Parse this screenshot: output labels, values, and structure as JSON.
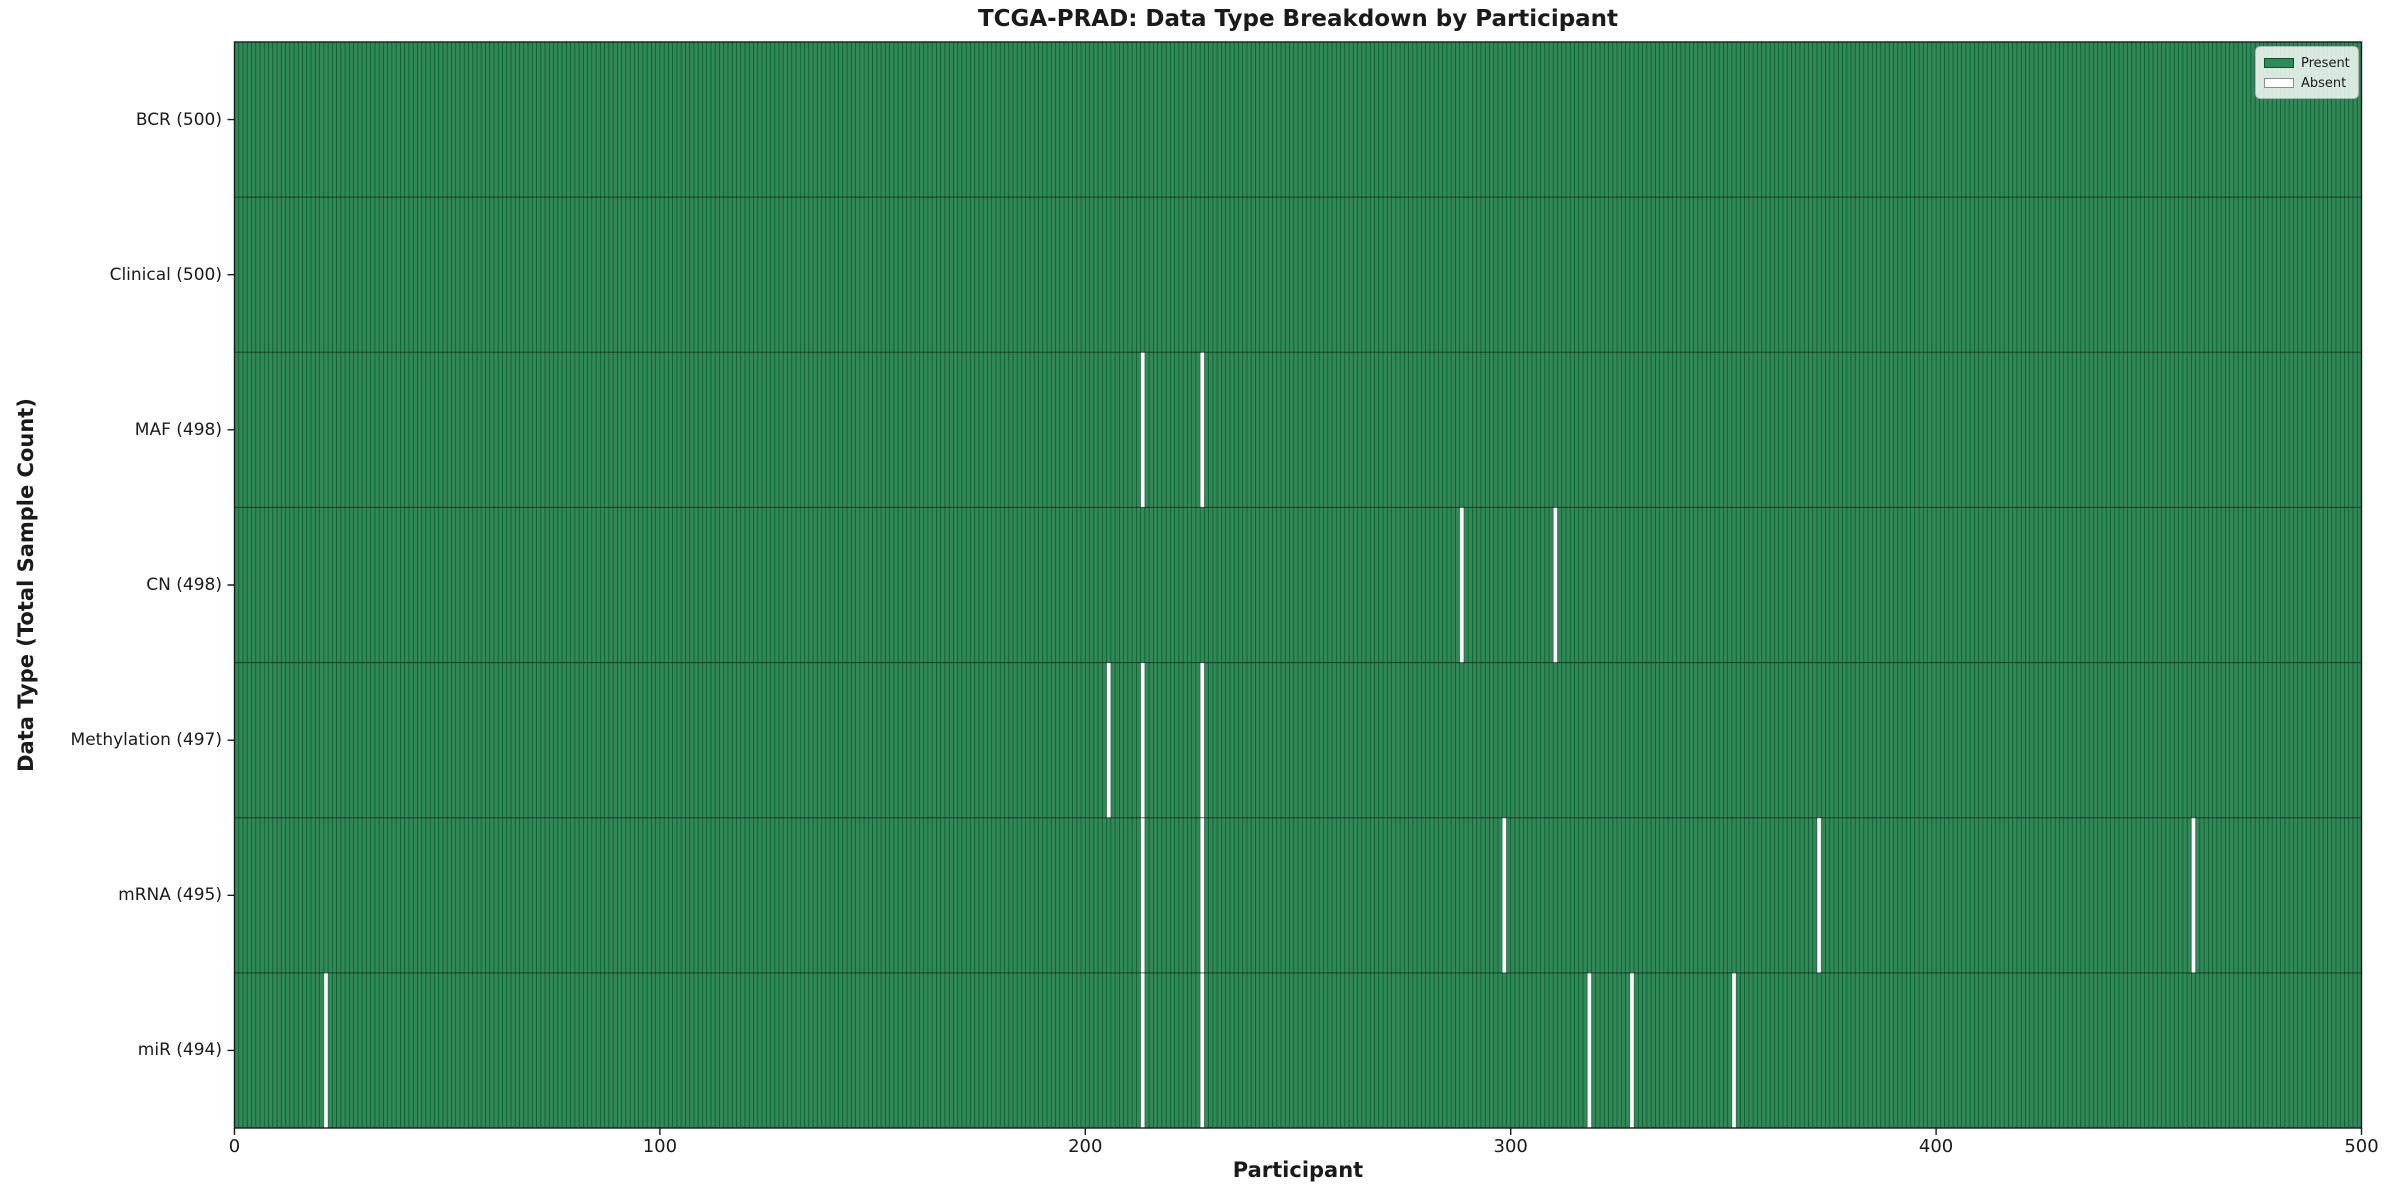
{
  "chart_data": {
    "type": "heatmap",
    "title": "TCGA-PRAD: Data Type Breakdown by Participant",
    "xlabel": "Participant",
    "ylabel": "Data Type (Total Sample Count)",
    "x_range": [
      0,
      500
    ],
    "x_ticks": [
      0,
      100,
      200,
      300,
      400,
      500
    ],
    "grid": false,
    "legend_position": "upper right",
    "legend": [
      {
        "label": "Present",
        "color": "#2e8b57"
      },
      {
        "label": "Absent",
        "color": "#ffffff"
      }
    ],
    "rows": [
      {
        "label": "BCR (500)",
        "total": 500,
        "absent_participants": []
      },
      {
        "label": "Clinical (500)",
        "total": 500,
        "absent_participants": []
      },
      {
        "label": "MAF (498)",
        "total": 498,
        "absent_participants": [
          213,
          227
        ]
      },
      {
        "label": "CN (498)",
        "total": 498,
        "absent_participants": [
          288,
          310
        ]
      },
      {
        "label": "Methylation (497)",
        "total": 497,
        "absent_participants": [
          205,
          213,
          227
        ]
      },
      {
        "label": "mRNA (495)",
        "total": 495,
        "absent_participants": [
          213,
          227,
          298,
          372,
          460
        ]
      },
      {
        "label": "miR (494)",
        "total": 494,
        "absent_participants": [
          21,
          213,
          227,
          318,
          328,
          352
        ]
      }
    ],
    "colors": {
      "present": "#2e8b57",
      "absent": "#ffffff",
      "bar_edge": "rgba(0,0,0,0.42)",
      "row_separator": "rgba(0,0,0,0.6)",
      "spine": "#1a1a1a"
    }
  }
}
